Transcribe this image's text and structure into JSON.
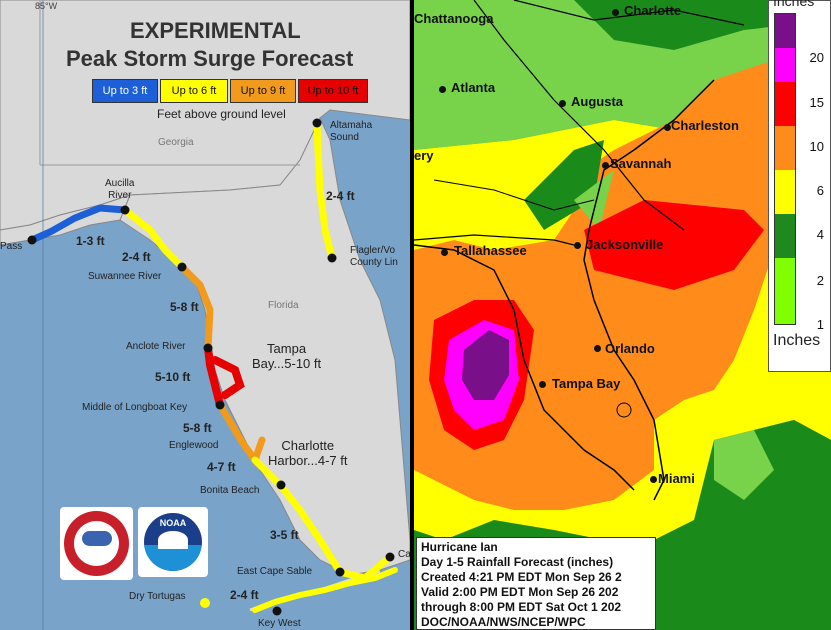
{
  "surge_map": {
    "title_line1": "EXPERIMENTAL",
    "title_line2": "Peak Storm Surge Forecast",
    "legend": [
      {
        "label": "Up to 3 ft",
        "color": "#1d5fd6"
      },
      {
        "label": "Up to 6 ft",
        "color": "#ffff00"
      },
      {
        "label": "Up to 9 ft",
        "color": "#f29a1c"
      },
      {
        "label": "Up to 10 ft",
        "color": "#e60000"
      }
    ],
    "legend_note": "Feet above ground level",
    "corner_label": "85°W",
    "state_georgia": "Georgia",
    "state_florida": "Florida",
    "labels": {
      "altamaha": "Altamaha\nSound",
      "surge_2_4_east": "2-4 ft",
      "flagler": "Flagler/Vo\nCounty Lin",
      "aucilla": "Aucilla\nRiver",
      "pass": "Pass",
      "surge_1_3": "1-3 ft",
      "surge_2_4_west": "2-4 ft",
      "suwannee": "Suwannee River",
      "surge_5_8_north": "5-8 ft",
      "anclote": "Anclote River",
      "tampa_bay": "Tampa\nBay...5-10 ft",
      "surge_5_10": "5-10 ft",
      "longboat": "Middle of Longboat Key",
      "surge_5_8_south": "5-8 ft",
      "englewood": "Englewood",
      "charlotte": "Charlotte\nHarbor...4-7 ft",
      "surge_4_7": "4-7 ft",
      "bonita": "Bonita Beach",
      "surge_3_5": "3-5 ft",
      "east_cape": "East Cape Sable",
      "cape_c": "Ca",
      "dry_tortugas": "Dry Tortugas",
      "surge_2_4_keys": "2-4 ft",
      "key_west": "Key West"
    },
    "logos": {
      "nws": "NATIONAL WEATHER SERVICE",
      "noaa": "NOAA"
    }
  },
  "rain_map": {
    "cities": {
      "chattanooga": "Chattanooga",
      "charlotte": "Charlotte",
      "atlanta": "Atlanta",
      "augusta": "Augusta",
      "charleston": "Charleston",
      "savannah": "Savannah",
      "albany_partial": "ery",
      "tallahassee": "Tallahassee",
      "jacksonville": "Jacksonville",
      "orlando": "Orlando",
      "tampa_bay": "Tampa Bay",
      "miami": "Miami"
    },
    "scale_title": "Inches",
    "scale_bottom_label": "Inches",
    "scale": [
      {
        "label": "20",
        "color": "#7a0f8a"
      },
      {
        "label": "15",
        "color": "#ff00ff"
      },
      {
        "label": "10",
        "color": "#ff0000"
      },
      {
        "label": "6",
        "color": "#ff8c1a"
      },
      {
        "label": "4",
        "color": "#ffff00"
      },
      {
        "label": "2",
        "color": "#1e8a1e"
      },
      {
        "label": "1",
        "color": "#7fff00"
      }
    ],
    "info": [
      "Hurricane Ian",
      "Day 1-5 Rainfall Forecast (inches)",
      "Created 4:21 PM EDT Mon Sep 26 2",
      "Valid 2:00 PM EDT Mon Sep 26 202",
      "through 8:00 PM EDT Sat Oct 1 202",
      "DOC/NOAA/NWS/NCEP/WPC"
    ]
  }
}
